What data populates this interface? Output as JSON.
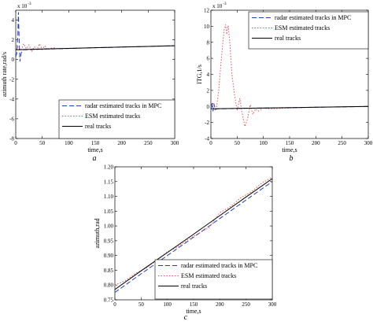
{
  "chart_data": [
    {
      "type": "line",
      "panel_label": "a",
      "xlabel": "time,s",
      "ylabel": "azimuth rate,rad/s",
      "y_exponent_label": "x 10",
      "y_exponent_power": "-3",
      "xlim": [
        0,
        300
      ],
      "ylim": [
        -8,
        5
      ],
      "xticks": [
        0,
        50,
        100,
        150,
        200,
        250,
        300
      ],
      "yticks": [
        -8,
        -6,
        -4,
        -2,
        0,
        2,
        4
      ],
      "legend_position": "bottom-right",
      "series": [
        {
          "name": "radar estimated tracks in MPC",
          "color": "#1f3fbf",
          "dash": "6,3",
          "x": [
            0,
            2,
            4,
            5,
            6,
            7,
            8,
            10,
            12,
            15,
            20,
            30,
            50,
            100,
            150,
            200,
            250,
            300
          ],
          "y": [
            0.3,
            0.6,
            2.5,
            4.8,
            3.0,
            1.0,
            -0.2,
            0.6,
            0.9,
            1.0,
            1.0,
            1.02,
            1.05,
            1.12,
            1.2,
            1.27,
            1.33,
            1.4
          ]
        },
        {
          "name": "ESM estimated tracks",
          "color": "#e0505a",
          "dash": "1.5,2",
          "x": [
            0,
            5,
            10,
            15,
            20,
            25,
            30,
            35,
            40,
            45,
            50,
            55,
            60,
            70,
            80,
            100,
            150,
            200,
            250,
            300
          ],
          "y": [
            1.0,
            1.4,
            0.9,
            1.6,
            1.1,
            1.5,
            0.8,
            1.3,
            1.0,
            1.6,
            1.0,
            1.4,
            1.0,
            1.2,
            1.1,
            1.15,
            1.2,
            1.27,
            1.33,
            1.4
          ]
        },
        {
          "name": "real tracks",
          "color": "#000000",
          "dash": "",
          "x": [
            0,
            50,
            100,
            150,
            200,
            250,
            300
          ],
          "y": [
            1.0,
            1.07,
            1.13,
            1.2,
            1.27,
            1.33,
            1.4
          ]
        }
      ]
    },
    {
      "type": "line",
      "panel_label": "b",
      "xlabel": "time,s",
      "ylabel": "ITG,1/s",
      "y_exponent_label": "x 10",
      "y_exponent_power": "-3",
      "xlim": [
        0,
        300
      ],
      "ylim": [
        -4,
        12
      ],
      "xticks": [
        0,
        50,
        100,
        150,
        200,
        250,
        300
      ],
      "yticks": [
        -4,
        -2,
        0,
        2,
        4,
        6,
        8,
        10,
        12
      ],
      "legend_position": "top-right",
      "series": [
        {
          "name": "radar estimated tracks in MPC",
          "color": "#1f3fbf",
          "dash": "6,3",
          "x": [
            0,
            2,
            4,
            6,
            8,
            10,
            15,
            20,
            50,
            100,
            150,
            200,
            250,
            300
          ],
          "y": [
            -0.3,
            0.5,
            -0.6,
            0.3,
            -0.4,
            -0.3,
            -0.3,
            -0.3,
            -0.25,
            -0.2,
            -0.15,
            -0.1,
            -0.05,
            0.0
          ]
        },
        {
          "name": "ESM estimated tracks",
          "color": "#e0505a",
          "dash": "1.5,2",
          "x": [
            0,
            5,
            10,
            15,
            20,
            25,
            28,
            30,
            33,
            36,
            40,
            45,
            50,
            55,
            60,
            65,
            70,
            75,
            80,
            85,
            90,
            100,
            110,
            150,
            200,
            250,
            300
          ],
          "y": [
            0.0,
            0.5,
            -0.5,
            2.0,
            6.0,
            9.5,
            10.2,
            9.0,
            10.1,
            8.0,
            4.0,
            1.5,
            -0.5,
            1.0,
            -1.0,
            -2.5,
            -1.5,
            0.2,
            -1.0,
            -0.3,
            -0.6,
            -0.2,
            -0.3,
            -0.2,
            -0.1,
            -0.05,
            0.0
          ]
        },
        {
          "name": "real tracks",
          "color": "#000000",
          "dash": "",
          "x": [
            0,
            100,
            200,
            300
          ],
          "y": [
            -0.3,
            -0.2,
            -0.1,
            0.0
          ]
        }
      ]
    },
    {
      "type": "line",
      "panel_label": "c",
      "xlabel": "time,s",
      "ylabel": "azimuth,rad",
      "xlim": [
        0,
        300
      ],
      "ylim": [
        0.75,
        1.2
      ],
      "xticks": [
        0,
        50,
        100,
        150,
        200,
        250,
        300
      ],
      "yticks": [
        0.75,
        0.8,
        0.85,
        0.9,
        0.95,
        1.0,
        1.05,
        1.1,
        1.15,
        1.2
      ],
      "ytick_labels": [
        "0.75",
        "0.80",
        "0.85",
        "0.90",
        "0.95",
        "1.00",
        "1.05",
        "1.10",
        "1.15",
        "1.20"
      ],
      "legend_position": "bottom-right",
      "series": [
        {
          "name": "radar estimated tracks in MPC",
          "color": "#1f3fbf",
          "dash": "6,3",
          "x": [
            0,
            50,
            100,
            150,
            200,
            250,
            300
          ],
          "y": [
            0.775,
            0.838,
            0.9,
            0.962,
            1.025,
            1.088,
            1.15
          ]
        },
        {
          "name": "ESM estimated tracks",
          "color": "#e0505a",
          "dash": "1.5,2",
          "x": [
            0,
            20,
            40,
            60,
            80,
            100,
            120,
            140,
            160,
            180,
            200,
            220,
            240,
            260,
            280,
            300
          ],
          "y": [
            0.8,
            0.815,
            0.84,
            0.858,
            0.885,
            0.912,
            0.93,
            0.955,
            0.975,
            0.995,
            1.045,
            1.065,
            1.095,
            1.115,
            1.145,
            1.165
          ]
        },
        {
          "name": "real tracks",
          "color": "#000000",
          "dash": "",
          "x": [
            0,
            50,
            100,
            150,
            200,
            250,
            300
          ],
          "y": [
            0.785,
            0.848,
            0.91,
            0.972,
            1.035,
            1.098,
            1.16
          ]
        }
      ]
    }
  ]
}
